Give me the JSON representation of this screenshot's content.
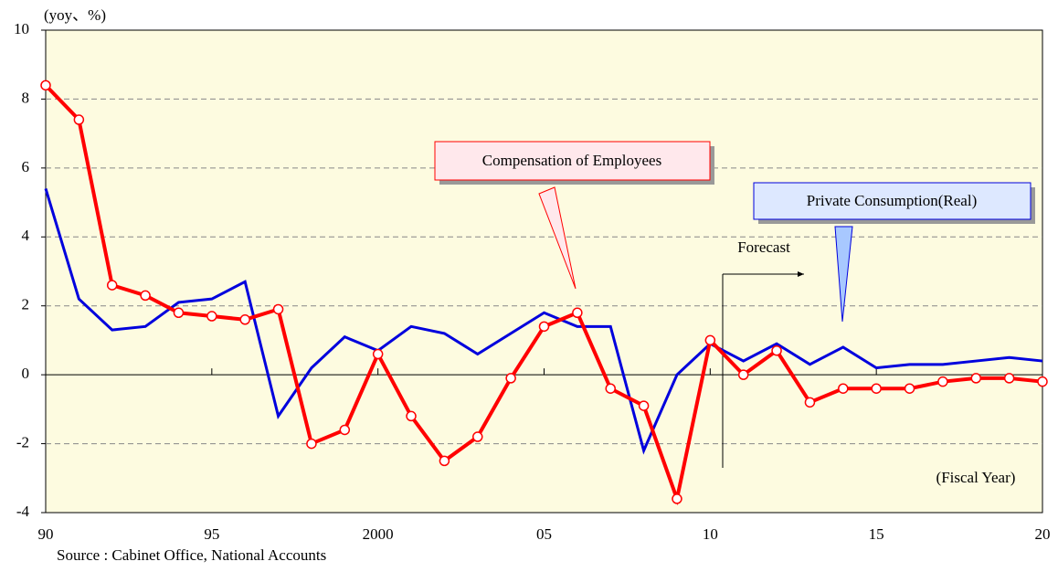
{
  "chart_data": {
    "type": "line",
    "y_label": "(yoy、%)",
    "x_label": "(Fiscal Year)",
    "source": "Source : Cabinet Office, National Accounts",
    "forecast_label": "Forecast",
    "x": [
      1990,
      1991,
      1992,
      1993,
      1994,
      1995,
      1996,
      1997,
      1998,
      1999,
      2000,
      2001,
      2002,
      2003,
      2004,
      2005,
      2006,
      2007,
      2008,
      2009,
      2010,
      2011,
      2012,
      2013,
      2014,
      2015,
      2016,
      2017,
      2018,
      2019,
      2020
    ],
    "series": [
      {
        "name": "Compensation of Employees",
        "color": "#ff0000",
        "values": [
          8.4,
          7.4,
          2.6,
          2.3,
          1.8,
          1.7,
          1.6,
          1.9,
          -2.0,
          -1.6,
          0.6,
          -1.2,
          -2.5,
          -1.8,
          -0.1,
          1.4,
          1.8,
          -0.4,
          -0.9,
          -3.6,
          1.0,
          0.0,
          0.7,
          -0.8,
          -0.4,
          -0.4,
          -0.4,
          -0.2,
          -0.1,
          -0.1,
          -0.2
        ]
      },
      {
        "name": "Private Consumption(Real)",
        "color": "#0000dd",
        "values": [
          5.4,
          2.2,
          1.3,
          1.4,
          2.1,
          2.2,
          2.7,
          -1.2,
          0.2,
          1.1,
          0.7,
          1.4,
          1.2,
          0.6,
          1.2,
          1.8,
          1.4,
          1.4,
          -2.2,
          0.0,
          0.9,
          0.4,
          0.9,
          0.3,
          0.8,
          0.2,
          0.3,
          0.3,
          0.4,
          0.5,
          0.4
        ]
      }
    ],
    "xlim": [
      1990,
      2020
    ],
    "xticks": [
      {
        "value": 1990,
        "label": "90"
      },
      {
        "value": 1995,
        "label": "95"
      },
      {
        "value": 2000,
        "label": "2000"
      },
      {
        "value": 2005,
        "label": "05"
      },
      {
        "value": 2010,
        "label": "10"
      },
      {
        "value": 2015,
        "label": "15"
      },
      {
        "value": 2020,
        "label": "20"
      }
    ],
    "ylim": [
      -4,
      10
    ],
    "yticks": [
      -4,
      -2,
      0,
      2,
      4,
      6,
      8,
      10
    ],
    "grid": true
  }
}
